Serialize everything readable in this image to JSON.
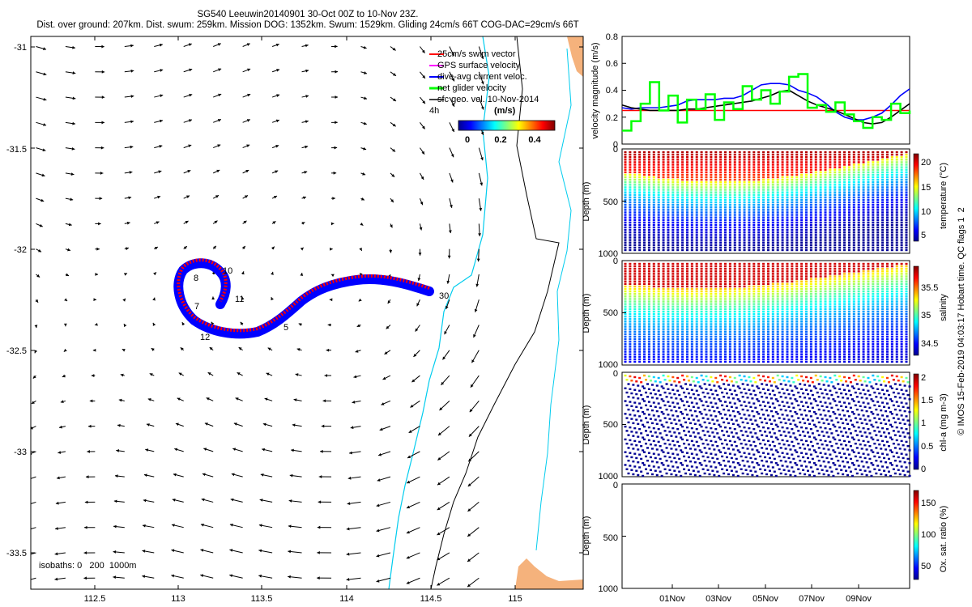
{
  "header": {
    "title": "SG540 Leeuwin20140901 30-Oct 00Z to 10-Nov 23Z.",
    "stats": "Dist. over ground: 207km. Dist. swum: 259km. Mission DOG: 1352km. Swum: 1529km. Gliding 24cm/s 66T COG-DAC=29cm/s 66T"
  },
  "map": {
    "lon_ticks": [
      "112.5",
      "113",
      "113.5",
      "114",
      "114.5",
      "115"
    ],
    "lat_ticks": [
      "-31",
      "-31.5",
      "-32",
      "-32.5",
      "-33",
      "-33.5"
    ],
    "lon_range": [
      112.17,
      115.35
    ],
    "lat_range": [
      -33.68,
      -30.95
    ],
    "legend": [
      {
        "label": "25cm/s swim vector",
        "color": "#ff0000"
      },
      {
        "label": "GPS surface velocity",
        "color": "#ff00ff"
      },
      {
        "label": "dive-avg current veloc.",
        "color": "#0000ff"
      },
      {
        "label": "net glider velocity",
        "color": "#00ff00"
      },
      {
        "label": "sfc geo. vel. 10-Nov-2014",
        "color": "#000000"
      }
    ],
    "cbar_interval": "4h",
    "cbar_unit": "(m/s)",
    "cbar_ticks": [
      "0",
      "0.2",
      "0.4"
    ],
    "isobaths": "isobaths: 0   200  1000m",
    "day_labels": [
      "10",
      "8",
      "11",
      "7",
      "12",
      "5",
      "30"
    ],
    "coast_color": "#f5b27c",
    "isobath200_color": "#00ccee",
    "isobath1000_color": "#000000"
  },
  "velocity_panel": {
    "ylabel": "velocity magnitude (m/s)",
    "yticks": [
      "0",
      "0.2",
      "0.4",
      "0.6",
      "0.8"
    ],
    "ylim": [
      0,
      0.8
    ],
    "ref_speed": 0.25,
    "series": [
      {
        "name": "dive-avg current",
        "color": "#0000ff",
        "values": [
          0.27,
          0.26,
          0.27,
          0.27,
          0.27,
          0.28,
          0.29,
          0.32,
          0.33,
          0.33,
          0.33,
          0.34,
          0.34,
          0.36,
          0.4,
          0.44,
          0.45,
          0.45,
          0.44,
          0.4,
          0.38,
          0.35,
          0.3,
          0.24,
          0.2,
          0.18,
          0.18,
          0.2,
          0.23,
          0.29,
          0.36,
          0.41
        ]
      },
      {
        "name": "sfc geo vel",
        "color": "#000000",
        "values": [
          0.29,
          0.27,
          0.26,
          0.25,
          0.25,
          0.25,
          0.25,
          0.26,
          0.26,
          0.27,
          0.28,
          0.29,
          0.3,
          0.31,
          0.32,
          0.34,
          0.36,
          0.39,
          0.4,
          0.36,
          0.32,
          0.29,
          0.27,
          0.25,
          0.22,
          0.19,
          0.16,
          0.15,
          0.16,
          0.2,
          0.25,
          0.3
        ]
      },
      {
        "name": "net glider",
        "color": "#00ff00",
        "values": [
          0.1,
          0.17,
          0.3,
          0.46,
          0.25,
          0.36,
          0.16,
          0.33,
          0.26,
          0.37,
          0.18,
          0.31,
          0.26,
          0.43,
          0.33,
          0.4,
          0.3,
          0.39,
          0.5,
          0.52,
          0.27,
          0.29,
          0.24,
          0.31,
          0.22,
          0.17,
          0.12,
          0.2,
          0.18,
          0.3,
          0.23,
          0.25
        ]
      }
    ]
  },
  "profile_panels": [
    {
      "name": "temperature",
      "clabel": "temperature (°C)",
      "cticks": [
        "5",
        "10",
        "15",
        "20"
      ],
      "cmin": 3,
      "cmax": 22,
      "sparse": false
    },
    {
      "name": "salinity",
      "clabel": "salinity",
      "cticks": [
        "34.5",
        "35",
        "35.5"
      ],
      "cmin": 34.3,
      "cmax": 35.8,
      "sparse": false
    },
    {
      "name": "chl-a",
      "clabel": "chl-a (mg m-3)",
      "cticks": [
        "0",
        "0.5",
        "1",
        "1.5",
        "2"
      ],
      "cmin": 0,
      "cmax": 2,
      "sparse": true
    },
    {
      "name": "oxygen",
      "clabel": "Ox. sat. ratio (%)",
      "cticks": [
        "50",
        "100",
        "150"
      ],
      "cmin": 25,
      "cmax": 175,
      "empty": true
    }
  ],
  "depth_label": "Depth (m)",
  "depth_ticks": [
    "0",
    "500",
    "1000"
  ],
  "date_ticks": [
    "01Nov",
    "03Nov",
    "05Nov",
    "07Nov",
    "09Nov"
  ],
  "footer": "© IMOS 15-Feb-2019 04:03:17 Hobart time. QC flags 1  2"
}
